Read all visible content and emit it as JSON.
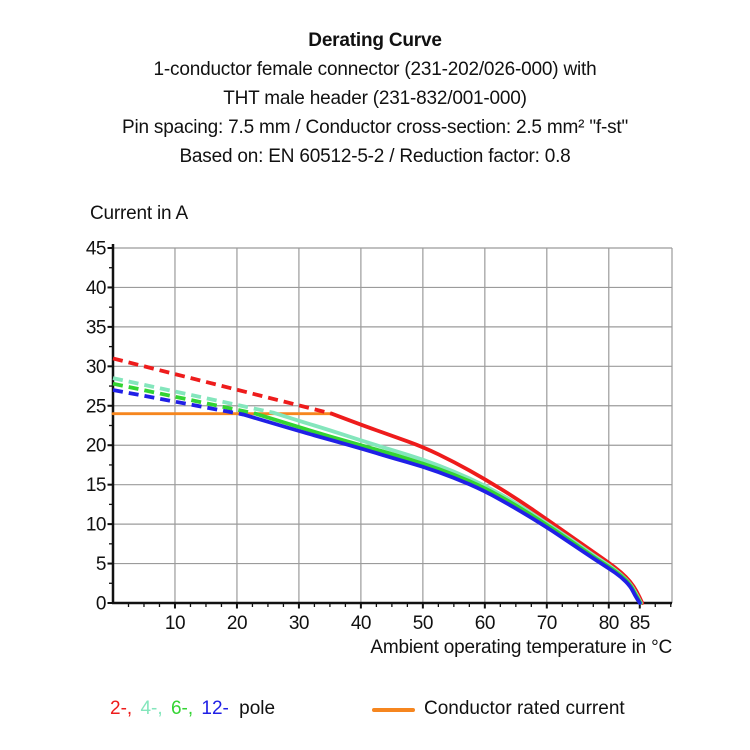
{
  "header": {
    "title": "Derating Curve",
    "lines": [
      "1-conductor female connector (231-202/026-000) with",
      "THT male header (231-832/001-000)",
      "Pin spacing: 7.5 mm / Conductor cross-section: 2.5 mm² \"f-st\"",
      "Based on: EN 60512-5-2 / Reduction factor: 0.8"
    ]
  },
  "chart_data": {
    "type": "line",
    "title": "Derating Curve",
    "xlabel": "Ambient operating temperature in °C",
    "ylabel": "Current in A",
    "x_axis": {
      "label": "Ambient operating temperature in °C",
      "min": 0,
      "max": 90.2,
      "major_ticks": [
        10,
        20,
        30,
        40,
        50,
        60,
        70,
        80,
        85
      ],
      "minor_tick_step": 2.5,
      "gridlines": [
        10,
        20,
        30,
        40,
        50,
        60,
        70,
        80,
        90.2
      ]
    },
    "y_axis": {
      "label": "Current in A",
      "min": 0,
      "max": 45,
      "major_ticks": [
        0,
        5,
        10,
        15,
        20,
        25,
        30,
        35,
        40,
        45
      ],
      "minor_tick_step": 2.5,
      "gridlines": [
        5,
        10,
        15,
        20,
        25,
        30,
        35,
        40,
        45
      ]
    },
    "grid": true,
    "colors": {
      "grid": "#9b9b9b",
      "axis": "#111111",
      "pole2": "#ee1c1c",
      "pole4": "#84e6bc",
      "pole6": "#33d433",
      "pole12": "#2020e6",
      "rated": "#f6861f"
    },
    "series": [
      {
        "name": "conductor-rated-current",
        "label": "Conductor rated current",
        "color": "#f6861f",
        "style": "solid",
        "width": 2.8,
        "points": [
          [
            0,
            24
          ],
          [
            35.3,
            24
          ]
        ]
      },
      {
        "name": "2-pole-dashed",
        "label": "2-pole (above rated)",
        "color": "#ee1c1c",
        "style": "dashed",
        "points": [
          [
            0,
            31
          ],
          [
            35.3,
            24
          ]
        ]
      },
      {
        "name": "2-pole",
        "label": "2-pole",
        "color": "#ee1c1c",
        "style": "solid",
        "points": [
          [
            35.3,
            24
          ],
          [
            40,
            22.6
          ],
          [
            45,
            21.2
          ],
          [
            50,
            19.8
          ],
          [
            55,
            17.9
          ],
          [
            60,
            15.7
          ],
          [
            65,
            13.3
          ],
          [
            70,
            10.6
          ],
          [
            74,
            8.4
          ],
          [
            78,
            6.2
          ],
          [
            80,
            5.1
          ],
          [
            82,
            3.9
          ],
          [
            83.5,
            2.7
          ],
          [
            84.5,
            1.5
          ],
          [
            85.4,
            0
          ]
        ]
      },
      {
        "name": "4-pole-dashed",
        "label": "4-pole (above rated)",
        "color": "#84e6bc",
        "style": "dashed",
        "points": [
          [
            0,
            28.5
          ],
          [
            26,
            24.1
          ]
        ]
      },
      {
        "name": "4-pole",
        "label": "4-pole",
        "color": "#84e6bc",
        "style": "solid",
        "points": [
          [
            26,
            24.1
          ],
          [
            30,
            23.1
          ],
          [
            35,
            21.9
          ],
          [
            40,
            20.6
          ],
          [
            45,
            19.4
          ],
          [
            50,
            18.2
          ],
          [
            55,
            16.7
          ],
          [
            60,
            14.9
          ],
          [
            65,
            12.7
          ],
          [
            70,
            10.1
          ],
          [
            74,
            8.0
          ],
          [
            78,
            5.8
          ],
          [
            80,
            4.8
          ],
          [
            82,
            3.6
          ],
          [
            83.5,
            2.4
          ],
          [
            84.4,
            1.2
          ],
          [
            85.2,
            0
          ]
        ]
      },
      {
        "name": "6-pole-dashed",
        "label": "6-pole (above rated)",
        "color": "#33d433",
        "style": "dashed",
        "points": [
          [
            0,
            27.8
          ],
          [
            23,
            24
          ]
        ]
      },
      {
        "name": "6-pole",
        "label": "6-pole",
        "color": "#33d433",
        "style": "solid",
        "points": [
          [
            23,
            24
          ],
          [
            30,
            22.3
          ],
          [
            35,
            21.1
          ],
          [
            40,
            20.0
          ],
          [
            45,
            18.9
          ],
          [
            50,
            17.7
          ],
          [
            55,
            16.3
          ],
          [
            60,
            14.6
          ],
          [
            65,
            12.4
          ],
          [
            70,
            9.9
          ],
          [
            74,
            7.8
          ],
          [
            78,
            5.6
          ],
          [
            80,
            4.6
          ],
          [
            82,
            3.5
          ],
          [
            83.5,
            2.3
          ],
          [
            84.3,
            1.1
          ],
          [
            85.1,
            0
          ]
        ]
      },
      {
        "name": "12-pole-dashed",
        "label": "12-pole (above rated)",
        "color": "#2020e6",
        "style": "dashed",
        "points": [
          [
            0,
            27
          ],
          [
            21,
            23.9
          ]
        ]
      },
      {
        "name": "12-pole",
        "label": "12-pole",
        "color": "#2020e6",
        "style": "solid",
        "points": [
          [
            21,
            23.9
          ],
          [
            30,
            21.8
          ],
          [
            35,
            20.7
          ],
          [
            40,
            19.6
          ],
          [
            45,
            18.4
          ],
          [
            50,
            17.3
          ],
          [
            55,
            15.9
          ],
          [
            60,
            14.2
          ],
          [
            65,
            12.0
          ],
          [
            70,
            9.6
          ],
          [
            74,
            7.5
          ],
          [
            78,
            5.4
          ],
          [
            80,
            4.4
          ],
          [
            82,
            3.3
          ],
          [
            83.5,
            2.1
          ],
          [
            84.2,
            1.0
          ],
          [
            85,
            0
          ]
        ]
      }
    ],
    "legend_position": "bottom"
  },
  "legend": {
    "poles": [
      {
        "label": "2-,",
        "color": "#ee1c1c"
      },
      {
        "label": "4-,",
        "color": "#84e6bc"
      },
      {
        "label": "6-,",
        "color": "#33d433"
      },
      {
        "label": "12-",
        "color": "#2020e6"
      }
    ],
    "pole_suffix": "pole",
    "rated": {
      "label": "Conductor rated current",
      "color": "#f6861f"
    }
  }
}
